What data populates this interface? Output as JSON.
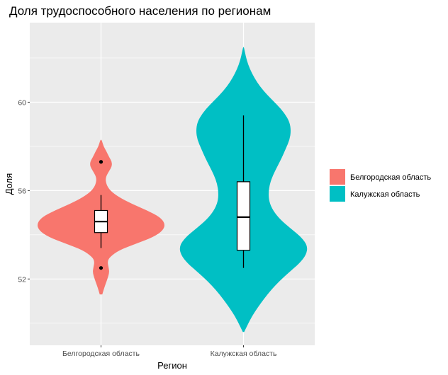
{
  "chart_data": {
    "type": "violin",
    "title": "Доля трудоспособного населения по регионам",
    "xlabel": "Регион",
    "ylabel": "Доля",
    "ylim": [
      49.0,
      63.6
    ],
    "yticks": [
      52,
      56,
      60
    ],
    "grid": true,
    "legend_position": "right",
    "categories": [
      "Белгородская область",
      "Калужская область"
    ],
    "series": [
      {
        "name": "Белгородская область",
        "color": "#F8766D",
        "box": {
          "lower_whisker": 53.4,
          "q1": 54.1,
          "median": 54.6,
          "q3": 55.1,
          "upper_whisker": 55.8
        },
        "outliers": [
          57.3,
          52.5
        ],
        "violin": {
          "y": [
            51.3,
            51.6,
            52.0,
            52.3,
            52.5,
            52.8,
            53.0,
            53.3,
            53.6,
            53.9,
            54.2,
            54.5,
            54.8,
            55.1,
            55.4,
            55.7,
            56.0,
            56.3,
            56.6,
            56.9,
            57.1,
            57.3,
            57.5,
            57.8,
            58.0,
            58.3
          ],
          "density": [
            0.02,
            0.05,
            0.1,
            0.13,
            0.12,
            0.1,
            0.14,
            0.28,
            0.55,
            0.82,
            0.97,
            1.0,
            0.92,
            0.72,
            0.48,
            0.28,
            0.14,
            0.08,
            0.07,
            0.13,
            0.17,
            0.17,
            0.13,
            0.08,
            0.04,
            0.01
          ]
        }
      },
      {
        "name": "Калужская область",
        "color": "#00BFC4",
        "box": {
          "lower_whisker": 52.5,
          "q1": 53.3,
          "median": 54.8,
          "q3": 56.4,
          "upper_whisker": 59.4
        },
        "outliers": [],
        "violin": {
          "y": [
            49.6,
            49.9,
            50.3,
            50.7,
            51.1,
            51.5,
            51.9,
            52.3,
            52.7,
            53.1,
            53.5,
            53.9,
            54.3,
            54.7,
            55.1,
            55.5,
            55.9,
            56.3,
            56.7,
            57.1,
            57.5,
            57.9,
            58.3,
            58.7,
            59.1,
            59.5,
            59.9,
            60.3,
            60.7,
            61.1,
            61.5,
            61.9,
            62.3,
            62.5
          ],
          "density": [
            0.01,
            0.06,
            0.13,
            0.22,
            0.32,
            0.43,
            0.56,
            0.71,
            0.87,
            0.98,
            1.0,
            0.9,
            0.73,
            0.57,
            0.46,
            0.4,
            0.39,
            0.41,
            0.46,
            0.53,
            0.6,
            0.66,
            0.72,
            0.74,
            0.72,
            0.64,
            0.52,
            0.38,
            0.26,
            0.17,
            0.1,
            0.05,
            0.02,
            0.005
          ]
        }
      }
    ]
  }
}
